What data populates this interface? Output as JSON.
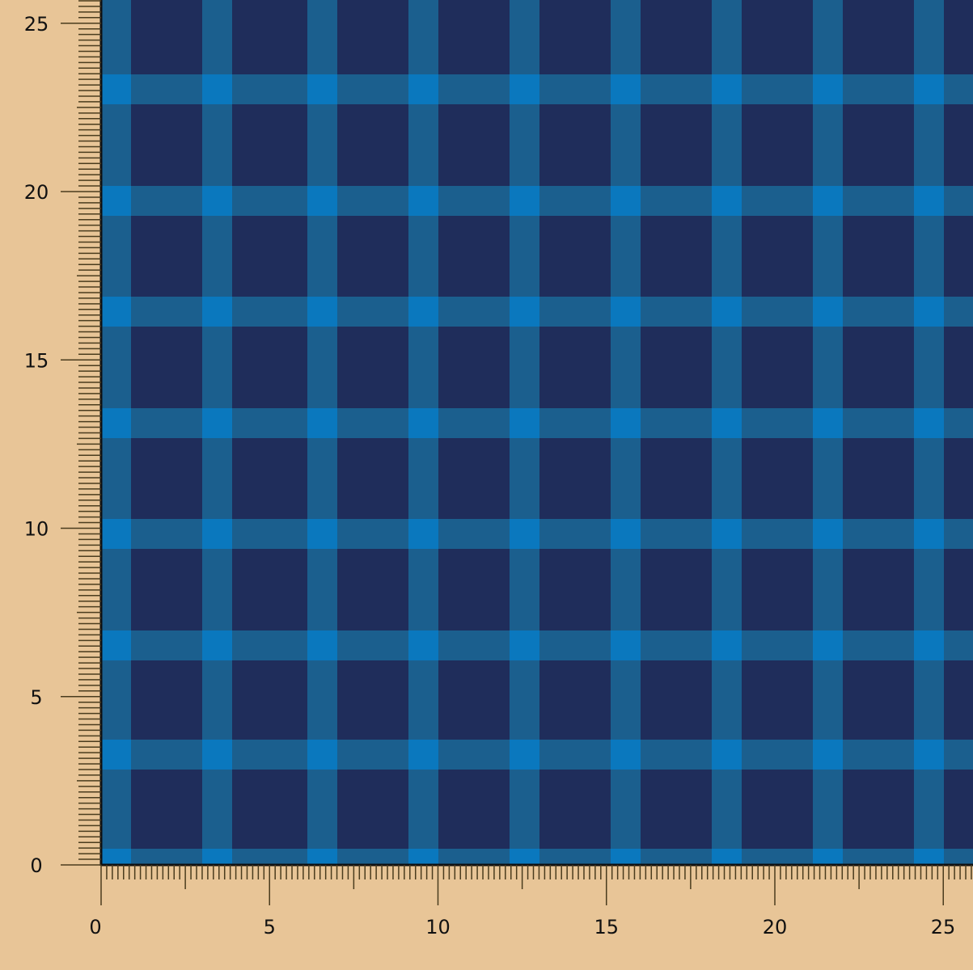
{
  "colors": {
    "background": "#E8C597",
    "fabric_base": "#1F2D5B",
    "stripe": "#1B5F8E",
    "stripe_intersection": "#0A78BE",
    "ruler_ticks": "#4A3C1E"
  },
  "ruler": {
    "x_labels": [
      "0",
      "5",
      "10",
      "15",
      "20",
      "25"
    ],
    "y_labels": [
      "0",
      "5",
      "10",
      "15",
      "20",
      "25"
    ]
  }
}
